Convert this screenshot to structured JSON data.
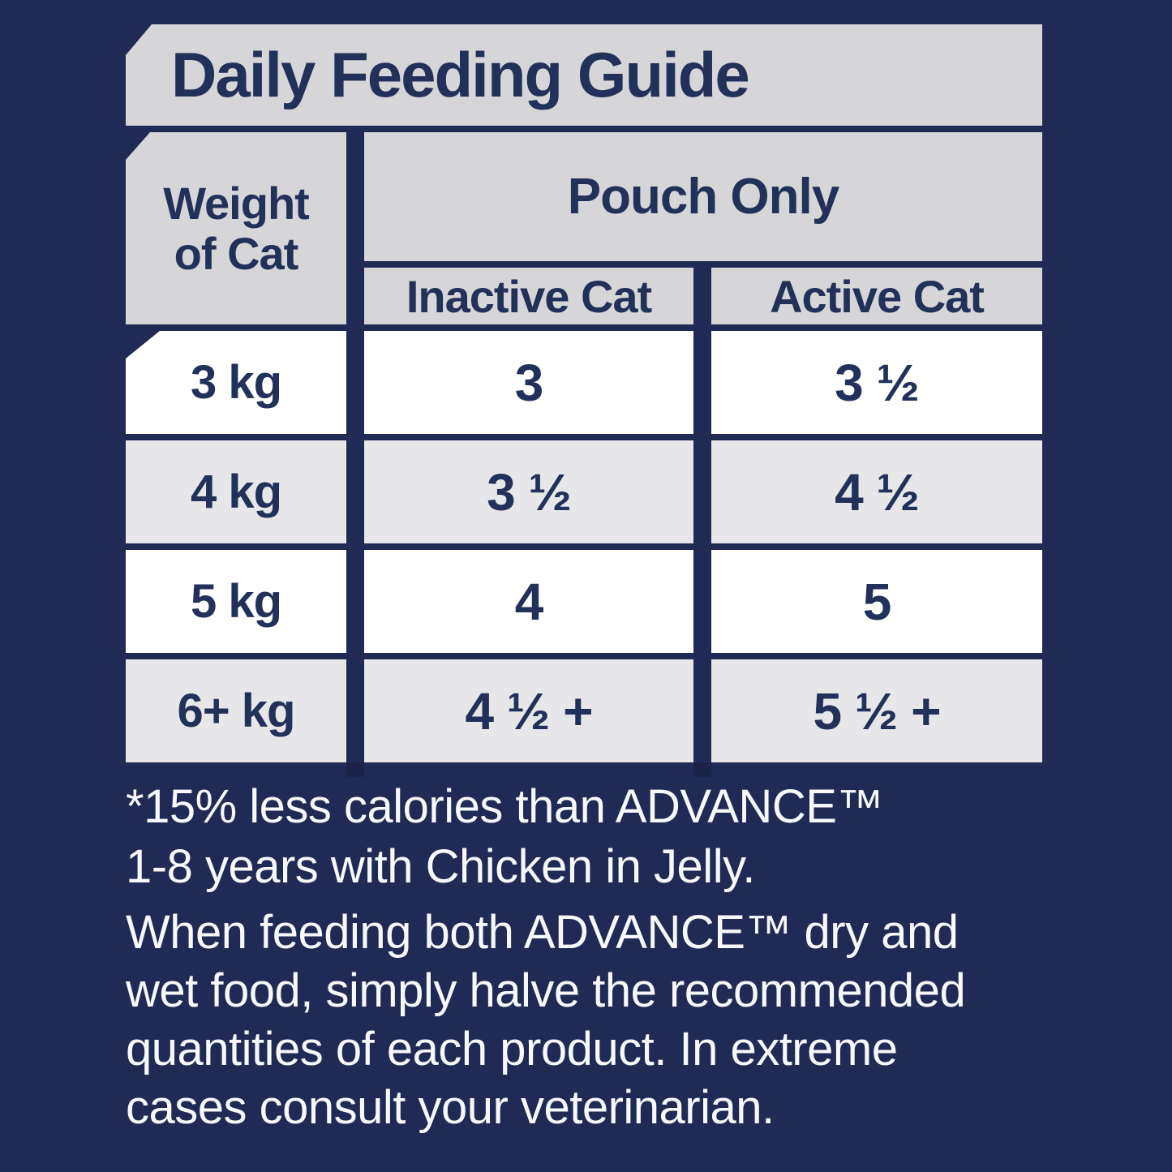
{
  "title": "Daily Feeding Guide",
  "table": {
    "weight_header": "Weight\nof Cat",
    "group_header": "Pouch Only",
    "col_headers": [
      "Inactive Cat",
      "Active Cat"
    ],
    "rows": [
      {
        "weight": "3 kg",
        "inactive": "3",
        "active": "3 ½"
      },
      {
        "weight": "4 kg",
        "inactive": "3 ½",
        "active": "4 ½"
      },
      {
        "weight": "5 kg",
        "inactive": "4",
        "active": "5"
      },
      {
        "weight": "6+ kg",
        "inactive": "4 ½ +",
        "active": "5 ½ +"
      }
    ]
  },
  "footnote": "*15% less calories than ADVANCE™\n1-8 years with Chicken in Jelly.",
  "note": "When feeding both ADVANCE™ dry and\nwet food, simply halve the recommended\nquantities of each product. In extreme\ncases consult your veterinarian.",
  "colors": {
    "background": "#1F2B54",
    "header_gray": "#D6D6D9",
    "row_gray": "#E7E7EA",
    "row_white": "#FFFFFF",
    "table_text": "#223159",
    "body_text": "#F7F8FA"
  }
}
